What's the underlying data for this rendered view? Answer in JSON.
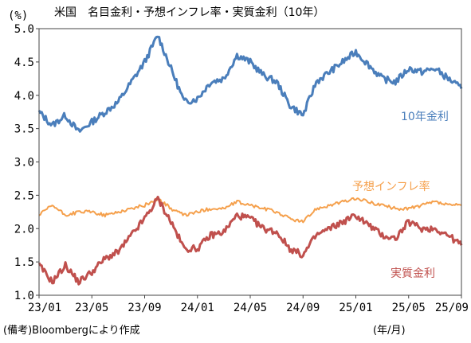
{
  "chart_data": {
    "type": "line",
    "title": "米国　名目金利・予想インフレ率・実質金利（10年）",
    "ylabel": "(%)",
    "xlabel": "(年/月)",
    "ylim": [
      1.0,
      5.0
    ],
    "yticks": [
      "1.0",
      "1.5",
      "2.0",
      "2.5",
      "3.0",
      "3.5",
      "4.0",
      "4.5",
      "5.0"
    ],
    "xticks": [
      "23/01",
      "23/05",
      "23/09",
      "24/01",
      "24/05",
      "24/09",
      "25/01",
      "25/05",
      "25/09"
    ],
    "x": [
      "23/01",
      "23/02",
      "23/03",
      "23/04",
      "23/05",
      "23/06",
      "23/07",
      "23/08",
      "23/09",
      "23/10",
      "23/11",
      "23/12",
      "24/01",
      "24/02",
      "24/03",
      "24/04",
      "24/05",
      "24/06",
      "24/07",
      "24/08",
      "24/09",
      "24/10",
      "24/11",
      "24/12",
      "25/01",
      "25/02",
      "25/03",
      "25/04",
      "25/05",
      "25/06",
      "25/07",
      "25/08",
      "25/09"
    ],
    "series": [
      {
        "name": "10年金利",
        "color": "#4a7ebb",
        "values": [
          3.75,
          3.55,
          3.7,
          3.45,
          3.6,
          3.75,
          3.9,
          4.2,
          4.5,
          4.9,
          4.4,
          3.9,
          3.95,
          4.2,
          4.25,
          4.6,
          4.5,
          4.3,
          4.2,
          3.85,
          3.7,
          4.2,
          4.35,
          4.5,
          4.65,
          4.45,
          4.25,
          4.2,
          4.4,
          4.35,
          4.4,
          4.25,
          4.1
        ]
      },
      {
        "name": "予想インフレ率",
        "color": "#f5a04c",
        "values": [
          2.2,
          2.35,
          2.2,
          2.25,
          2.25,
          2.2,
          2.25,
          2.3,
          2.35,
          2.45,
          2.3,
          2.2,
          2.25,
          2.3,
          2.3,
          2.4,
          2.35,
          2.3,
          2.25,
          2.15,
          2.1,
          2.3,
          2.35,
          2.4,
          2.45,
          2.4,
          2.35,
          2.3,
          2.3,
          2.35,
          2.4,
          2.35,
          2.35
        ]
      },
      {
        "name": "実質金利",
        "color": "#c0504d",
        "values": [
          1.45,
          1.2,
          1.45,
          1.2,
          1.35,
          1.55,
          1.65,
          1.9,
          2.15,
          2.45,
          2.1,
          1.7,
          1.7,
          1.9,
          1.95,
          2.2,
          2.15,
          2.0,
          1.95,
          1.7,
          1.6,
          1.9,
          2.0,
          2.1,
          2.2,
          2.05,
          1.9,
          1.85,
          2.1,
          2.0,
          2.0,
          1.9,
          1.75
        ]
      }
    ]
  },
  "note": "(備考)Bloombergにより作成"
}
